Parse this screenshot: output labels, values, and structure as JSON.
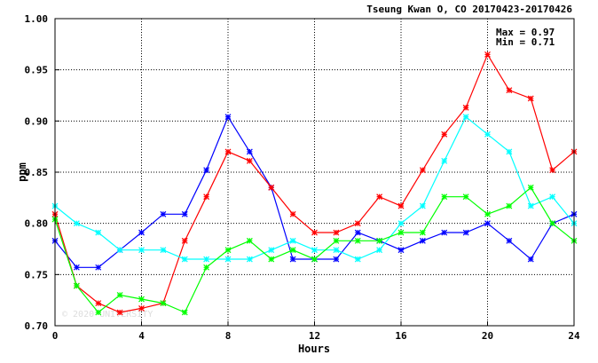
{
  "chart_data": {
    "type": "line",
    "title": "Tseung Kwan O, CO 20170423-20170426",
    "xlabel": "Hours",
    "ylabel": "ppm",
    "xlim": [
      0,
      24
    ],
    "ylim": [
      0.7,
      1.0
    ],
    "x_ticks": [
      0,
      4,
      8,
      12,
      16,
      20,
      24
    ],
    "y_ticks": [
      0.7,
      0.75,
      0.8,
      0.85,
      0.9,
      0.95,
      1.0
    ],
    "y_tick_labels": [
      "0.70",
      "0.75",
      "0.80",
      "0.85",
      "0.90",
      "0.95",
      "1.00"
    ],
    "grid": true,
    "stats": {
      "max_label": "Max = 0.97",
      "min_label": "Min = 0.71"
    },
    "watermark": "© 2020 UNIVERSITY",
    "x": [
      0,
      1,
      2,
      3,
      4,
      5,
      6,
      7,
      8,
      9,
      10,
      11,
      12,
      13,
      14,
      15,
      16,
      17,
      18,
      19,
      20,
      21,
      22,
      23,
      24
    ],
    "series": [
      {
        "color": "#0000ff",
        "values": [
          0.783,
          0.757,
          0.757,
          0.774,
          0.791,
          0.809,
          0.809,
          0.852,
          0.904,
          0.87,
          0.835,
          0.765,
          0.765,
          0.765,
          0.791,
          0.783,
          0.774,
          0.783,
          0.791,
          0.791,
          0.8,
          0.783,
          0.765,
          0.8,
          0.809
        ]
      },
      {
        "color": "#ff0000",
        "values": [
          0.809,
          0.739,
          0.722,
          0.713,
          0.717,
          0.722,
          0.783,
          0.826,
          0.87,
          0.861,
          0.835,
          0.809,
          0.791,
          0.791,
          0.8,
          0.826,
          0.817,
          0.852,
          0.887,
          0.913,
          0.965,
          0.93,
          0.922,
          0.852,
          0.87
        ]
      },
      {
        "color": "#00ffff",
        "values": [
          0.817,
          0.8,
          0.791,
          0.774,
          0.774,
          0.774,
          0.765,
          0.765,
          0.765,
          0.765,
          0.774,
          0.783,
          0.774,
          0.774,
          0.765,
          0.774,
          0.8,
          0.817,
          0.861,
          0.904,
          0.887,
          0.87,
          0.817,
          0.826,
          0.8
        ]
      },
      {
        "color": "#00ff00",
        "values": [
          0.804,
          0.739,
          0.713,
          0.73,
          0.726,
          0.722,
          0.713,
          0.757,
          0.774,
          0.783,
          0.765,
          0.774,
          0.765,
          0.783,
          0.783,
          0.783,
          0.791,
          0.791,
          0.826,
          0.826,
          0.809,
          0.817,
          0.835,
          0.8,
          0.783
        ]
      }
    ]
  }
}
